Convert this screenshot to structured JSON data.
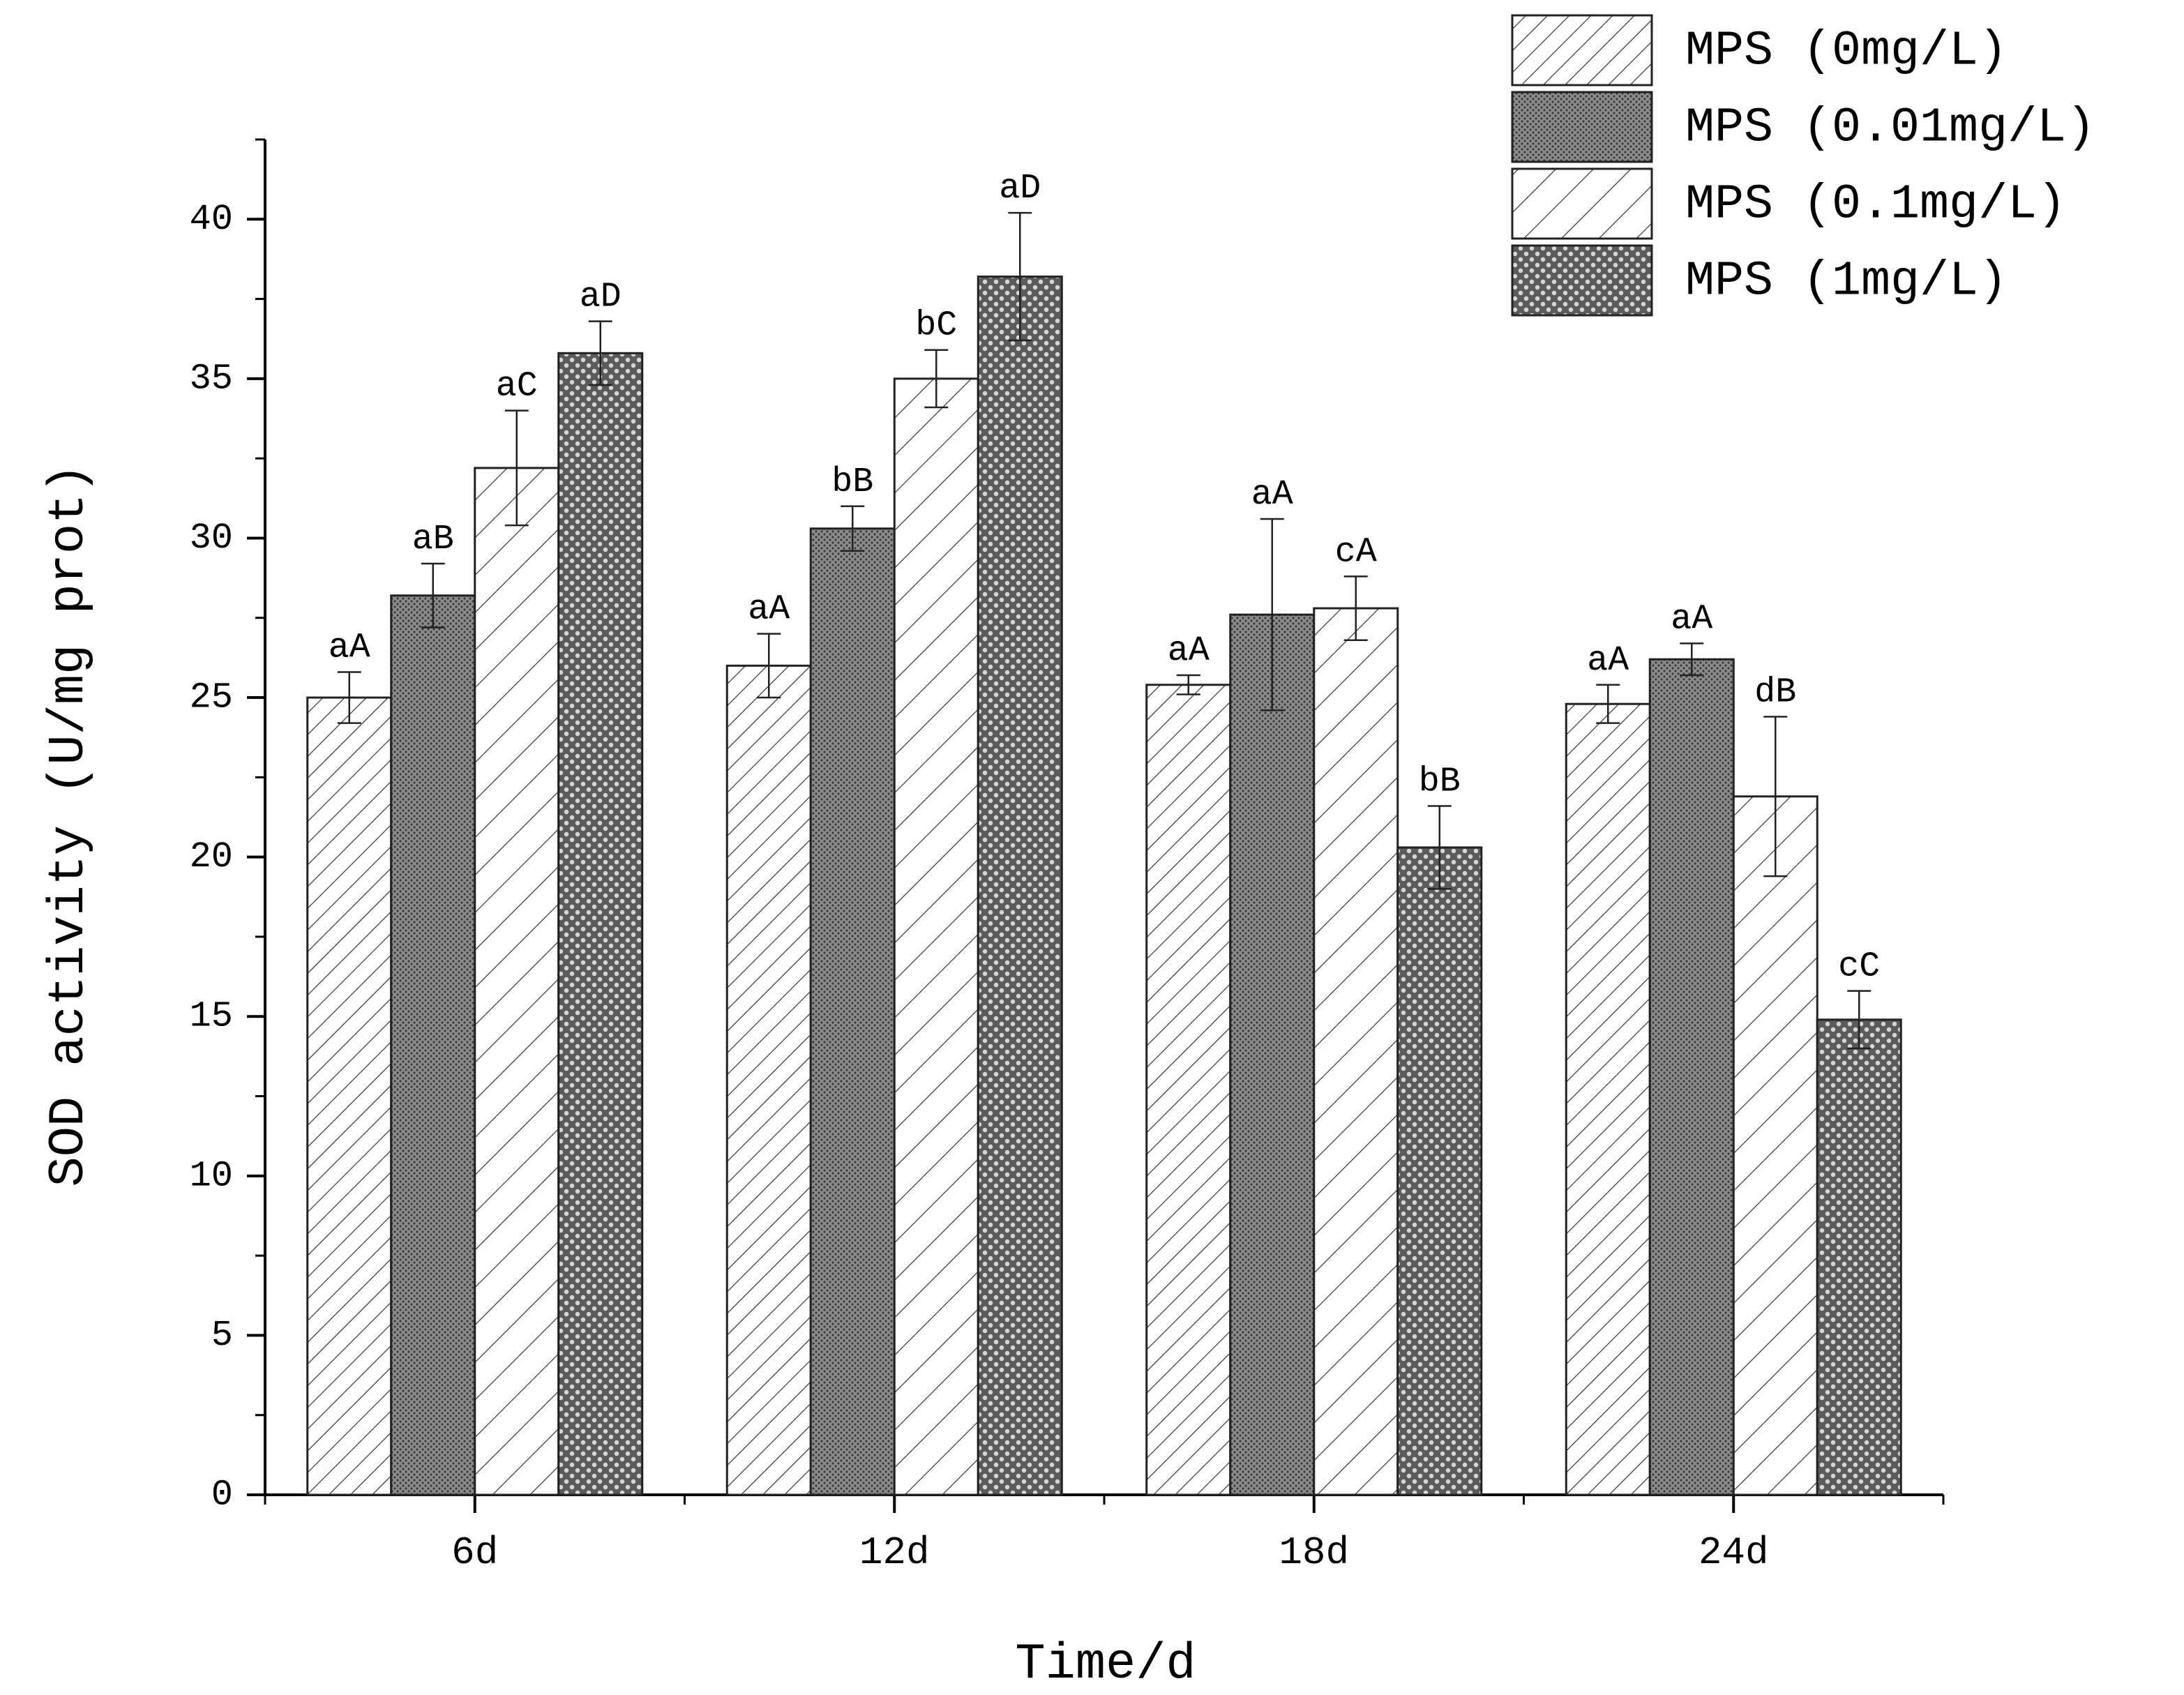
{
  "chart_data": {
    "type": "bar",
    "xlabel": "Time/d",
    "ylabel": "SOD activity (U/mg prot)",
    "ylim": [
      0,
      42.5
    ],
    "yticks": [
      0,
      5,
      10,
      15,
      20,
      25,
      30,
      35,
      40
    ],
    "grid": false,
    "legend_position": "top-right",
    "categories": [
      "6d",
      "12d",
      "18d",
      "24d"
    ],
    "series": [
      {
        "name": "MPS (0mg/L)",
        "pattern": "light-hatch",
        "values": [
          25.0,
          26.0,
          25.4,
          24.8
        ],
        "errors": [
          0.8,
          1.0,
          0.3,
          0.6
        ],
        "labels": [
          "aA",
          "aA",
          "aA",
          "aA"
        ]
      },
      {
        "name": "MPS (0.01mg/L)",
        "pattern": "dense-grey",
        "values": [
          28.2,
          30.3,
          27.6,
          26.2
        ],
        "errors": [
          1.0,
          0.7,
          3.0,
          0.5
        ],
        "labels": [
          "aB",
          "bB",
          "aA",
          "aA"
        ]
      },
      {
        "name": "MPS (0.1mg/L)",
        "pattern": "wide-hatch",
        "values": [
          32.2,
          35.0,
          27.8,
          21.9
        ],
        "errors": [
          1.8,
          0.9,
          1.0,
          2.5
        ],
        "labels": [
          "aC",
          "bC",
          "cA",
          "dB"
        ]
      },
      {
        "name": "MPS (1mg/L)",
        "pattern": "dots",
        "values": [
          35.8,
          38.2,
          20.3,
          14.9
        ],
        "errors": [
          1.0,
          2.0,
          1.3,
          0.9
        ],
        "labels": [
          "aD",
          "aD",
          "bB",
          "cC"
        ]
      }
    ]
  }
}
